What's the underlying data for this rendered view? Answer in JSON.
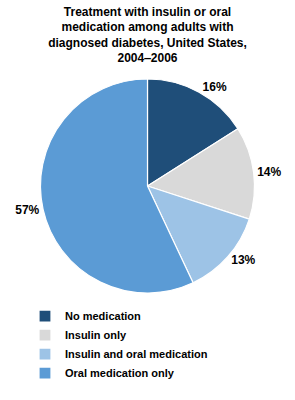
{
  "chart_data": {
    "type": "pie",
    "title": "Treatment with insulin or oral\nmedication among adults with\ndiagnosed diabetes, United States,\n2004‒2006",
    "categories": [
      "No medication",
      "Insulin only",
      "Insulin and oral medication",
      "Oral medication only"
    ],
    "values": [
      16,
      14,
      13,
      57
    ],
    "value_labels": [
      "16%",
      "14%",
      "13%",
      "57%"
    ],
    "colors": [
      "#1f4e79",
      "#d9d9d9",
      "#9dc3e6",
      "#5b9bd5"
    ],
    "data_labels": true,
    "legend": "lower left"
  }
}
